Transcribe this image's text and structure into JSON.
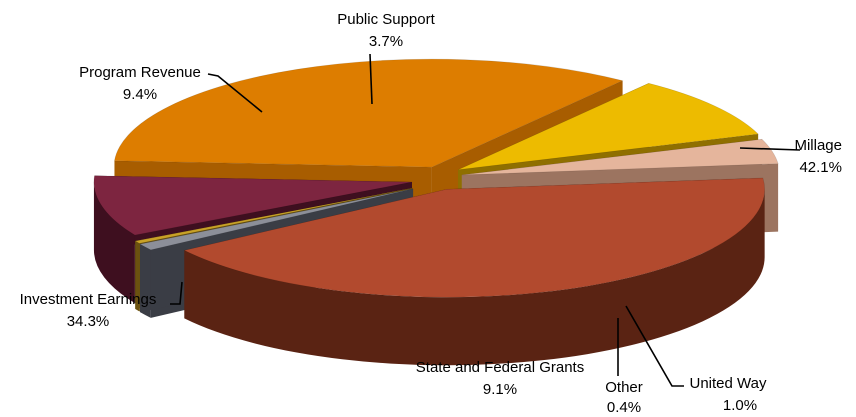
{
  "chart_data": {
    "type": "pie",
    "style": "3d-exploded",
    "title": "",
    "legend": "none",
    "units": "%",
    "slices": [
      {
        "label": "Millage",
        "value": 42.1,
        "value_label": "42.1%",
        "color": "#B24A2E",
        "side_color": "#5A2313"
      },
      {
        "label": "United Way",
        "value": 1.0,
        "value_label": "1.0%",
        "color": "#8C8F99",
        "side_color": "#3A3D45"
      },
      {
        "label": "Other",
        "value": 0.4,
        "value_label": "0.4%",
        "color": "#C9A227",
        "side_color": "#6B5210"
      },
      {
        "label": "State and Federal Grants",
        "value": 9.1,
        "value_label": "9.1%",
        "color": "#7D2540",
        "side_color": "#3E0F1F"
      },
      {
        "label": "Investment Earnings",
        "value": 34.3,
        "value_label": "34.3%",
        "color": "#DD7D00",
        "side_color": "#A85D00"
      },
      {
        "label": "Program Revenue",
        "value": 9.4,
        "value_label": "9.4%",
        "color": "#EDBB00",
        "side_color": "#8F6F00"
      },
      {
        "label": "Public Support",
        "value": 3.7,
        "value_label": "3.7%",
        "color": "#E5B59C",
        "side_color": "#9C7460"
      }
    ]
  }
}
